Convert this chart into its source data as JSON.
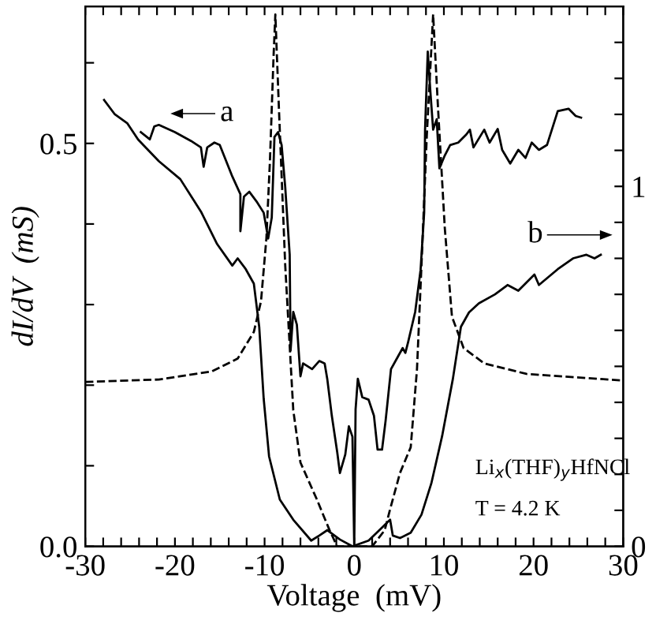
{
  "chart_data": {
    "type": "line",
    "xlabel": "Voltage  (mV)",
    "ylabel": "dI/dV  (mS)",
    "xlim": [
      -30,
      30
    ],
    "xticks": [
      -30,
      {
        "value": -28,
        "label": null
      },
      {
        "value": -26,
        "label": null
      },
      {
        "value": -24,
        "label": null
      },
      {
        "value": -22,
        "label": null
      },
      -20,
      {
        "value": -18,
        "label": null
      },
      {
        "value": -16,
        "label": null
      },
      {
        "value": -14,
        "label": null
      },
      {
        "value": -12,
        "label": null
      },
      -10,
      {
        "value": -8,
        "label": null
      },
      {
        "value": -6,
        "label": null
      },
      {
        "value": -4,
        "label": null
      },
      {
        "value": -2,
        "label": null
      },
      0,
      {
        "value": 2,
        "label": null
      },
      {
        "value": 4,
        "label": null
      },
      {
        "value": 6,
        "label": null
      },
      {
        "value": 8,
        "label": null
      },
      10,
      {
        "value": 12,
        "label": null
      },
      {
        "value": 14,
        "label": null
      },
      {
        "value": 16,
        "label": null
      },
      {
        "value": 18,
        "label": null
      },
      20,
      {
        "value": 22,
        "label": null
      },
      {
        "value": 24,
        "label": null
      },
      {
        "value": 26,
        "label": null
      },
      {
        "value": 28,
        "label": null
      },
      30
    ],
    "ylim": [
      0,
      0.67
    ],
    "yticks": [
      {
        "value": 0,
        "label": "0.0"
      },
      {
        "value": 0.1,
        "label": null
      },
      {
        "value": 0.2,
        "label": null
      },
      {
        "value": 0.3,
        "label": null
      },
      {
        "value": 0.4,
        "label": null
      },
      {
        "value": 0.5,
        "label": "0.5"
      },
      {
        "value": 0.6,
        "label": null
      }
    ],
    "y2lim": [
      0,
      1.5
    ],
    "y2ticks": [
      0,
      {
        "value": 0.1,
        "label": null
      },
      {
        "value": 0.2,
        "label": null
      },
      {
        "value": 0.3,
        "label": null
      },
      {
        "value": 0.4,
        "label": null
      },
      {
        "value": 0.5,
        "label": null
      },
      {
        "value": 0.6,
        "label": null
      },
      {
        "value": 0.7,
        "label": null
      },
      {
        "value": 0.8,
        "label": null
      },
      {
        "value": 0.9,
        "label": null
      },
      1,
      {
        "value": 1.1,
        "label": null
      },
      {
        "value": 1.2,
        "label": null
      },
      {
        "value": 1.3,
        "label": null
      },
      {
        "value": 1.4,
        "label": null
      }
    ],
    "grid": false,
    "legend": false,
    "marker": "none",
    "annotations": [
      "a",
      "b",
      "Li$_{x}$(THF)$_{y}$HfNCl",
      "T = 4.2 K"
    ],
    "series": [
      {
        "color": "#000000",
        "line_style": "solid",
        "x": [
          -23.8,
          -22.8,
          -22.3,
          -21.8,
          -20.0,
          -18.2,
          -17.1,
          -16.8,
          -16.4,
          -15.6,
          -15.0,
          -13.6,
          -12.7,
          -12.7,
          -12.3,
          -11.7,
          -10.9,
          -10.1,
          -9.6,
          -9.2,
          -8.9,
          -8.5,
          -8.1,
          -7.7,
          -7.2,
          -7.1,
          -6.8,
          -6.4,
          -6.0,
          -5.7,
          -4.7,
          -3.9,
          -3.3,
          -3.0,
          -2.5,
          -1.9,
          -1.6,
          -1.0,
          -0.6,
          -0.2,
          0.0,
          0.15,
          0.4,
          0.9,
          1.6,
          2.2,
          2.6,
          3.1,
          3.5,
          4.1,
          4.9,
          5.4,
          5.7,
          6.0,
          6.8,
          7.4,
          7.8,
          7.9,
          8.2,
          8.5,
          8.8,
          9.2,
          9.5,
          10.1,
          10.7,
          11.6,
          12.5,
          12.9,
          13.3,
          14.5,
          15.1,
          16.0,
          16.5,
          17.4,
          18.3,
          19.1,
          19.8,
          20.6,
          21.5,
          22.7,
          23.9,
          24.7,
          25.3
        ],
        "values": [
          0.514,
          0.505,
          0.521,
          0.523,
          0.514,
          0.503,
          0.495,
          0.471,
          0.495,
          0.501,
          0.498,
          0.459,
          0.437,
          0.391,
          0.434,
          0.44,
          0.428,
          0.414,
          0.382,
          0.408,
          0.508,
          0.514,
          0.498,
          0.446,
          0.362,
          0.243,
          0.291,
          0.275,
          0.211,
          0.227,
          0.22,
          0.23,
          0.227,
          0.207,
          0.162,
          0.117,
          0.091,
          0.114,
          0.149,
          0.136,
          0.0,
          0.17,
          0.208,
          0.185,
          0.182,
          0.162,
          0.12,
          0.12,
          0.156,
          0.22,
          0.236,
          0.246,
          0.24,
          0.253,
          0.291,
          0.343,
          0.414,
          0.517,
          0.614,
          0.563,
          0.517,
          0.53,
          0.469,
          0.485,
          0.498,
          0.501,
          0.511,
          0.517,
          0.495,
          0.517,
          0.501,
          0.518,
          0.492,
          0.475,
          0.492,
          0.482,
          0.501,
          0.492,
          0.498,
          0.54,
          0.543,
          0.534,
          0.532
        ]
      },
      {
        "color": "#000000",
        "line_style": "solid",
        "axis": "y2",
        "x": [
          -27.9,
          -26.7,
          -25.3,
          -24.1,
          -21.8,
          -19.4,
          -17.1,
          -15.3,
          -13.6,
          -13.0,
          -12.1,
          -11.2,
          -10.6,
          -10.1,
          -9.5,
          -8.3,
          -6.8,
          -4.8,
          -3.9,
          -3.0,
          -1.6,
          -0.2,
          1.6,
          3.1,
          4.0,
          4.3,
          5.1,
          6.3,
          7.5,
          8.6,
          9.8,
          11.0,
          11.9,
          12.8,
          13.9,
          15.7,
          17.1,
          18.3,
          20.1,
          20.6,
          22.7,
          24.4,
          25.9,
          26.8,
          27.5
        ],
        "values": [
          1.24,
          1.2,
          1.175,
          1.13,
          1.07,
          1.02,
          0.93,
          0.84,
          0.78,
          0.8,
          0.77,
          0.73,
          0.61,
          0.41,
          0.25,
          0.13,
          0.074,
          0.016,
          0.03,
          0.045,
          0.019,
          0.0,
          0.016,
          0.052,
          0.074,
          0.03,
          0.023,
          0.038,
          0.088,
          0.175,
          0.306,
          0.465,
          0.61,
          0.65,
          0.675,
          0.7,
          0.726,
          0.71,
          0.755,
          0.726,
          0.77,
          0.8,
          0.81,
          0.8,
          0.81
        ]
      },
      {
        "color": "#000000",
        "line_style": "dashed",
        "x": [
          -30,
          -21.8,
          -15.9,
          -13.0,
          -11.2,
          -10.4,
          -9.8,
          -9.4,
          -9.0,
          -8.8,
          -8.4,
          -7.7,
          -6.8,
          -6.0,
          -4.2,
          -2.75,
          -1.9,
          2.0,
          3.4,
          4.0,
          5.1,
          6.3,
          7.0,
          7.5,
          8.1,
          8.8,
          9.35,
          10.1,
          10.9,
          12.2,
          14.5,
          19.2,
          29.7
        ],
        "values": [
          0.204,
          0.207,
          0.217,
          0.233,
          0.266,
          0.304,
          0.382,
          0.479,
          0.608,
          0.66,
          0.543,
          0.349,
          0.169,
          0.104,
          0.059,
          0.02,
          0.0,
          0.0,
          0.02,
          0.046,
          0.091,
          0.123,
          0.22,
          0.349,
          0.511,
          0.66,
          0.543,
          0.395,
          0.285,
          0.246,
          0.227,
          0.214,
          0.206
        ]
      }
    ]
  }
}
